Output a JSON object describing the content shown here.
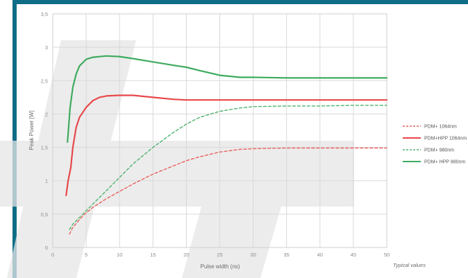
{
  "chart_data": {
    "type": "line",
    "title": "",
    "xlabel": "Pulse width (ns)",
    "ylabel": "Peak Power [W]",
    "xlim": [
      0,
      50
    ],
    "ylim": [
      0,
      3.5
    ],
    "x_ticks": [
      "0",
      "5",
      "10",
      "15",
      "20",
      "25",
      "30",
      "35",
      "40",
      "45",
      "50"
    ],
    "y_ticks": [
      "0",
      "0,5",
      "1",
      "1,5",
      "2",
      "2,5",
      "3",
      "3,5"
    ],
    "grid": true,
    "legend_position": "right",
    "annotation": "Typical values",
    "series": [
      {
        "name": "PDM+ 1064nm",
        "color": "#e8625e",
        "dashed": true,
        "points": [
          [
            2.5,
            0.2
          ],
          [
            3,
            0.3
          ],
          [
            4,
            0.42
          ],
          [
            5,
            0.52
          ],
          [
            6,
            0.6
          ],
          [
            8,
            0.73
          ],
          [
            10,
            0.84
          ],
          [
            12,
            0.95
          ],
          [
            15,
            1.1
          ],
          [
            18,
            1.22
          ],
          [
            20,
            1.3
          ],
          [
            22,
            1.36
          ],
          [
            25,
            1.43
          ],
          [
            28,
            1.47
          ],
          [
            30,
            1.48
          ],
          [
            35,
            1.49
          ],
          [
            40,
            1.49
          ],
          [
            45,
            1.49
          ],
          [
            50,
            1.49
          ]
        ]
      },
      {
        "name": "PDM+HPP 1064nm",
        "color": "#e8484a",
        "dashed": false,
        "points": [
          [
            2,
            0.78
          ],
          [
            2.3,
            1.0
          ],
          [
            2.7,
            1.2
          ],
          [
            3,
            1.5
          ],
          [
            3.5,
            1.8
          ],
          [
            4,
            1.95
          ],
          [
            5,
            2.1
          ],
          [
            6,
            2.2
          ],
          [
            7,
            2.25
          ],
          [
            8,
            2.27
          ],
          [
            10,
            2.28
          ],
          [
            12,
            2.28
          ],
          [
            15,
            2.25
          ],
          [
            18,
            2.22
          ],
          [
            20,
            2.21
          ],
          [
            25,
            2.21
          ],
          [
            30,
            2.21
          ],
          [
            40,
            2.21
          ],
          [
            50,
            2.21
          ]
        ]
      },
      {
        "name": "PDM+ 980nm",
        "color": "#4fb36e",
        "dashed": true,
        "points": [
          [
            2.5,
            0.27
          ],
          [
            3,
            0.35
          ],
          [
            4,
            0.45
          ],
          [
            5,
            0.55
          ],
          [
            6,
            0.65
          ],
          [
            8,
            0.85
          ],
          [
            10,
            1.05
          ],
          [
            12,
            1.25
          ],
          [
            15,
            1.5
          ],
          [
            18,
            1.72
          ],
          [
            20,
            1.85
          ],
          [
            22,
            1.95
          ],
          [
            25,
            2.04
          ],
          [
            28,
            2.09
          ],
          [
            30,
            2.11
          ],
          [
            35,
            2.12
          ],
          [
            40,
            2.12
          ],
          [
            45,
            2.13
          ],
          [
            50,
            2.13
          ]
        ]
      },
      {
        "name": "PDM+ HPP 980nm",
        "color": "#3eab5e",
        "dashed": false,
        "points": [
          [
            2.2,
            1.58
          ],
          [
            2.6,
            2.1
          ],
          [
            3,
            2.4
          ],
          [
            3.5,
            2.6
          ],
          [
            4,
            2.72
          ],
          [
            5,
            2.82
          ],
          [
            6,
            2.85
          ],
          [
            8,
            2.87
          ],
          [
            10,
            2.86
          ],
          [
            12,
            2.83
          ],
          [
            15,
            2.78
          ],
          [
            18,
            2.73
          ],
          [
            20,
            2.7
          ],
          [
            22,
            2.65
          ],
          [
            25,
            2.58
          ],
          [
            28,
            2.55
          ],
          [
            30,
            2.55
          ],
          [
            35,
            2.54
          ],
          [
            40,
            2.54
          ],
          [
            45,
            2.54
          ],
          [
            50,
            2.54
          ]
        ]
      }
    ]
  }
}
